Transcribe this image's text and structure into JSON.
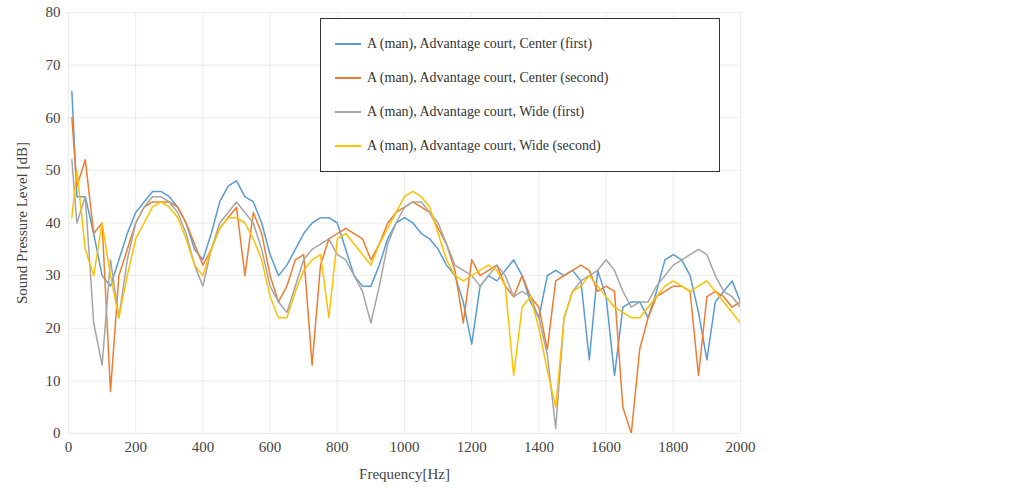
{
  "chart_data": {
    "type": "line",
    "xlabel": "Frequency[Hz]",
    "ylabel": "Sound Pressure Level [dB]",
    "xlim": [
      0,
      2000
    ],
    "xticks": [
      0,
      200,
      400,
      600,
      800,
      1000,
      1200,
      1400,
      1600,
      1800,
      2000
    ],
    "ylim": [
      0,
      80
    ],
    "yticks": [
      0,
      10,
      20,
      30,
      40,
      50,
      60,
      70,
      80
    ],
    "grid": true,
    "legend": "top-right",
    "x": [
      10,
      25,
      50,
      75,
      100,
      125,
      150,
      175,
      200,
      225,
      250,
      275,
      300,
      325,
      350,
      375,
      400,
      425,
      450,
      475,
      500,
      525,
      550,
      575,
      600,
      625,
      650,
      675,
      700,
      725,
      750,
      775,
      800,
      825,
      850,
      875,
      900,
      925,
      950,
      975,
      1000,
      1025,
      1050,
      1075,
      1100,
      1125,
      1150,
      1175,
      1200,
      1225,
      1250,
      1275,
      1300,
      1325,
      1350,
      1375,
      1400,
      1425,
      1450,
      1475,
      1500,
      1525,
      1550,
      1575,
      1600,
      1625,
      1650,
      1675,
      1700,
      1725,
      1750,
      1775,
      1800,
      1825,
      1850,
      1875,
      1900,
      1925,
      1950,
      1975,
      2000
    ],
    "series": [
      {
        "name": "A (man), Advantage court, Center (first)",
        "color": "#5b9bd5",
        "values": [
          65,
          45,
          45,
          38,
          30,
          28,
          33,
          38,
          42,
          44,
          46,
          46,
          45,
          43,
          40,
          35,
          33,
          38,
          44,
          47,
          48,
          45,
          44,
          40,
          34,
          30,
          32,
          35,
          38,
          40,
          41,
          41,
          40,
          35,
          30,
          28,
          28,
          32,
          37,
          40,
          41,
          40,
          38,
          37,
          35,
          32,
          30,
          25,
          17,
          28,
          30,
          29,
          31,
          33,
          30,
          25,
          22,
          30,
          31,
          30,
          31,
          29,
          14,
          31,
          26,
          11,
          24,
          25,
          25,
          22,
          27,
          33,
          34,
          33,
          30,
          23,
          14,
          25,
          27,
          29,
          25
        ]
      },
      {
        "name": "A (man), Advantage court, Center (second)",
        "color": "#ed7d31",
        "values": [
          60,
          47,
          52,
          38,
          40,
          8,
          30,
          35,
          40,
          43,
          44,
          44,
          44,
          43,
          40,
          36,
          32,
          35,
          39,
          41,
          43,
          30,
          42,
          38,
          30,
          25,
          28,
          33,
          34,
          13,
          32,
          37,
          38,
          39,
          38,
          37,
          33,
          36,
          40,
          42,
          43,
          44,
          43,
          42,
          39,
          36,
          31,
          21,
          33,
          30,
          31,
          32,
          28,
          26,
          30,
          26,
          24,
          16,
          29,
          30,
          31,
          32,
          31,
          27,
          28,
          27,
          5,
          0,
          16,
          22,
          26,
          27,
          28,
          28,
          27,
          11,
          26,
          27,
          26,
          24,
          25
        ]
      },
      {
        "name": "A (man), Advantage court, Wide (first)",
        "color": "#a5a5a5",
        "values": [
          52,
          40,
          45,
          21,
          13,
          33,
          22,
          33,
          40,
          43,
          45,
          45,
          44,
          42,
          38,
          32,
          28,
          35,
          40,
          42,
          44,
          42,
          40,
          35,
          28,
          25,
          23,
          28,
          33,
          35,
          36,
          37,
          34,
          33,
          30,
          27,
          21,
          28,
          36,
          40,
          43,
          44,
          44,
          42,
          40,
          36,
          32,
          31,
          30,
          28,
          30,
          32,
          30,
          26,
          27,
          26,
          22,
          15,
          1,
          22,
          27,
          29,
          30,
          31,
          33,
          31,
          27,
          24,
          25,
          25,
          28,
          30,
          32,
          33,
          34,
          35,
          34,
          30,
          27,
          26,
          24
        ]
      },
      {
        "name": "A (man), Advantage court, Wide (second)",
        "color": "#ffc000",
        "values": [
          41,
          50,
          35,
          30,
          40,
          30,
          22,
          30,
          37,
          40,
          43,
          44,
          43,
          41,
          37,
          32,
          30,
          35,
          39,
          41,
          41,
          40,
          37,
          33,
          26,
          22,
          22,
          27,
          31,
          33,
          34,
          22,
          37,
          38,
          36,
          34,
          32,
          36,
          39,
          42,
          45,
          46,
          45,
          43,
          38,
          33,
          30,
          29,
          30,
          31,
          32,
          31,
          28,
          11,
          24,
          26,
          20,
          12,
          5,
          22,
          27,
          28,
          30,
          28,
          26,
          24,
          23,
          22,
          22,
          24,
          26,
          28,
          29,
          28,
          27,
          28,
          29,
          27,
          25,
          23,
          21
        ]
      }
    ]
  }
}
